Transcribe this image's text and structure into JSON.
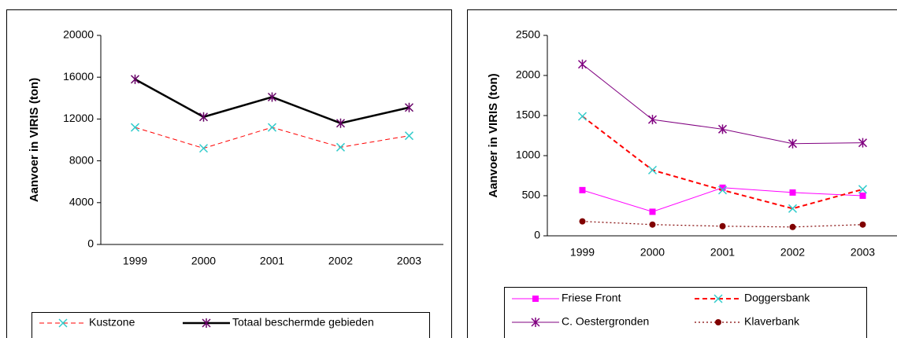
{
  "chart_data": [
    {
      "type": "line",
      "y_label": "Aanvoer in VIRIS (ton)",
      "categories": [
        "1999",
        "2000",
        "2001",
        "2002",
        "2003"
      ],
      "ylim": [
        0,
        20000
      ],
      "yticks": [
        0,
        4000,
        8000,
        12000,
        16000,
        20000
      ],
      "grid": false,
      "legend": "bottom",
      "series": [
        {
          "name": "Kustzone",
          "color": "#ff0000",
          "dash": "dashed",
          "width": 1,
          "marker": "x",
          "marker_color": "#33cccc",
          "values": [
            11200,
            9200,
            11200,
            9300,
            10400
          ]
        },
        {
          "name": "Totaal beschermde gebieden",
          "color": "#000000",
          "dash": "solid",
          "width": 2.5,
          "marker": "asterisk",
          "marker_color": "#660066",
          "values": [
            15800,
            12200,
            14100,
            11600,
            13100
          ]
        }
      ]
    },
    {
      "type": "line",
      "y_label": "Aanvoer in VIRIS (ton)",
      "categories": [
        "1999",
        "2000",
        "2001",
        "2002",
        "2003"
      ],
      "ylim": [
        0,
        2500
      ],
      "yticks": [
        0,
        500,
        1000,
        1500,
        2000,
        2500
      ],
      "grid": false,
      "legend": "bottom",
      "series": [
        {
          "name": "Friese Front",
          "color": "#ff00ff",
          "dash": "solid",
          "width": 1,
          "marker": "square",
          "marker_color": "#ff00ff",
          "values": [
            570,
            300,
            600,
            540,
            500
          ]
        },
        {
          "name": "Doggersbank",
          "color": "#ff0000",
          "dash": "dashed",
          "width": 2,
          "marker": "x",
          "marker_color": "#33cccc",
          "values": [
            1490,
            820,
            570,
            340,
            580
          ]
        },
        {
          "name": "C. Oestergronden",
          "color": "#800080",
          "dash": "solid",
          "width": 1,
          "marker": "asterisk",
          "marker_color": "#800080",
          "values": [
            2140,
            1450,
            1330,
            1150,
            1160
          ]
        },
        {
          "name": "Klaverbank",
          "color": "#800000",
          "dash": "dotted",
          "width": 1.2,
          "marker": "circle",
          "marker_color": "#800000",
          "values": [
            180,
            140,
            120,
            110,
            140
          ]
        }
      ]
    }
  ]
}
